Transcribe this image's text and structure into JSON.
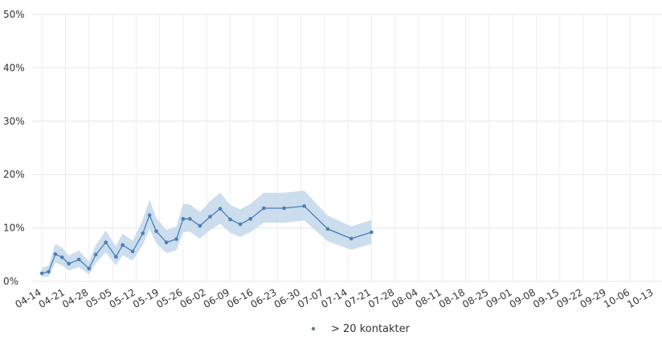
{
  "chart_data": {
    "type": "line",
    "title": "",
    "xlabel": "",
    "ylabel": "",
    "ylim": [
      0,
      50
    ],
    "y_ticks": [
      "0%",
      "10%",
      "20%",
      "30%",
      "40%",
      "50%"
    ],
    "x_ticks": [
      "04-14",
      "04-21",
      "04-28",
      "05-05",
      "05-12",
      "05-19",
      "05-26",
      "06-02",
      "06-09",
      "06-16",
      "06-23",
      "06-30",
      "07-07",
      "07-14",
      "07-21",
      "07-28",
      "08-04",
      "08-11",
      "08-18",
      "08-25",
      "09-01",
      "09-08",
      "09-15",
      "09-22",
      "09-29",
      "10-06",
      "10-13"
    ],
    "grid": true,
    "legend_position": "bottom",
    "series": [
      {
        "name": "> 20 kontakter",
        "color": "#4a7fb5",
        "band_color": "#c6d9ec",
        "x": [
          "04-14",
          "04-16",
          "04-18",
          "04-20",
          "04-22",
          "04-25",
          "04-28",
          "04-30",
          "05-03",
          "05-06",
          "05-08",
          "05-11",
          "05-14",
          "05-16",
          "05-18",
          "05-21",
          "05-24",
          "05-26",
          "05-28",
          "05-31",
          "06-03",
          "06-06",
          "06-09",
          "06-12",
          "06-15",
          "06-19",
          "06-25",
          "07-01",
          "07-08",
          "07-15",
          "07-21",
          "08-07",
          "08-20",
          "09-03",
          "09-17",
          "10-01",
          "10-13"
        ],
        "values": [
          1.5,
          1.8,
          5.1,
          4.5,
          3.3,
          4.1,
          2.4,
          5.0,
          7.3,
          4.6,
          6.8,
          5.6,
          9.0,
          12.4,
          9.4,
          7.3,
          7.9,
          11.7,
          11.7,
          10.4,
          12.1,
          13.6,
          11.6,
          10.7,
          11.7,
          13.7,
          13.7,
          14.1,
          9.8,
          8.0,
          9.2,
          null,
          null,
          null,
          null,
          null,
          null
        ],
        "upper": [
          2.5,
          3.0,
          7.0,
          6.3,
          4.8,
          5.8,
          3.7,
          6.8,
          9.5,
          6.6,
          9.0,
          7.6,
          11.6,
          15.3,
          11.9,
          9.6,
          10.3,
          14.6,
          14.4,
          13.0,
          15.0,
          16.6,
          14.3,
          13.5,
          14.5,
          16.6,
          16.6,
          17.0,
          12.3,
          10.3,
          11.5,
          null,
          null,
          null,
          null,
          null,
          null
        ],
        "lower": [
          0.8,
          0.9,
          3.5,
          3.0,
          2.0,
          2.7,
          1.3,
          3.4,
          5.4,
          3.0,
          4.9,
          3.9,
          6.8,
          9.8,
          7.1,
          5.3,
          5.8,
          9.2,
          9.3,
          8.0,
          9.6,
          10.8,
          9.1,
          8.3,
          9.2,
          11.0,
          11.0,
          11.4,
          7.5,
          5.9,
          7.0,
          null,
          null,
          null,
          null,
          null,
          null
        ]
      }
    ]
  }
}
